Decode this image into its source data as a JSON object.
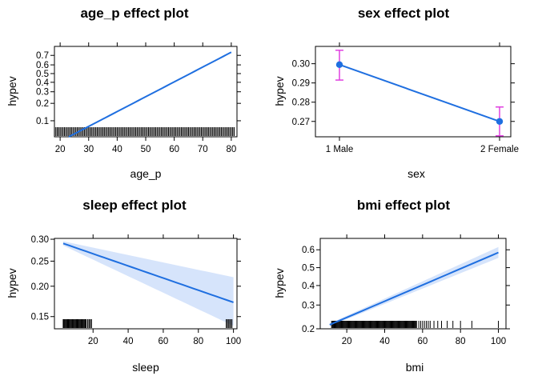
{
  "chart_data": [
    {
      "type": "line",
      "title": "age_p effect plot",
      "xlabel": "age_p",
      "ylabel": "hypev",
      "x_scale": "linear",
      "y_scale": "logit",
      "xlim": [
        18,
        82
      ],
      "ylim": [
        0.05,
        0.78
      ],
      "x_ticks": [
        "20",
        "30",
        "40",
        "50",
        "60",
        "70",
        "80"
      ],
      "y_ticks": [
        "0.1",
        "0.2",
        "0.3",
        "0.4",
        "0.5",
        "0.6",
        "0.7"
      ],
      "series": [
        {
          "kind": "fit",
          "color": "#1f6fe0",
          "x": [
            23,
            80
          ],
          "y": [
            0.05,
            0.73
          ]
        }
      ],
      "rug": {
        "type": "dense",
        "from": 18,
        "to": 81
      },
      "grid": false
    },
    {
      "type": "line",
      "title": "sex effect plot",
      "xlabel": "sex",
      "ylabel": "hypev",
      "categories": [
        "1 Male",
        "2 Female"
      ],
      "x_ticks": [
        "1 Male",
        "2 Female"
      ],
      "y_ticks": [
        "0.27",
        "0.28",
        "0.29",
        "0.30"
      ],
      "ylim": [
        0.262,
        0.309
      ],
      "series": [
        {
          "kind": "points",
          "color": "#1f6fe0",
          "values": [
            0.2995,
            0.27
          ],
          "lower": [
            0.2915,
            0.2625
          ],
          "upper": [
            0.307,
            0.2775
          ],
          "errorbar_color": "#e040e0"
        }
      ],
      "grid": false
    },
    {
      "type": "line",
      "title": "sleep effect plot",
      "xlabel": "sleep",
      "ylabel": "hypev",
      "xlim": [
        -2,
        102
      ],
      "ylim": [
        0.133,
        0.302
      ],
      "y_scale": "logit",
      "x_ticks": [
        "20",
        "40",
        "60",
        "80",
        "100"
      ],
      "y_ticks": [
        "0.15",
        "0.20",
        "0.25",
        "0.30"
      ],
      "series": [
        {
          "kind": "fit",
          "color": "#1f6fe0",
          "band_color": "#d6e4fb",
          "x": [
            3,
            100
          ],
          "y": [
            0.29,
            0.172
          ],
          "band_upper": [
            0.295,
            0.217
          ],
          "band_lower": [
            0.285,
            0.137
          ]
        }
      ],
      "rug": {
        "type": "sparse",
        "dense_from": 3,
        "dense_to": 16,
        "extra": [
          17,
          18,
          19,
          96,
          97,
          98,
          99
        ]
      },
      "grid": false
    },
    {
      "type": "line",
      "title": "bmi effect plot",
      "xlabel": "bmi",
      "ylabel": "hypev",
      "xlim": [
        6,
        104
      ],
      "ylim": [
        0.2,
        0.66
      ],
      "y_scale": "logit",
      "x_ticks": [
        "20",
        "40",
        "60",
        "80",
        "100"
      ],
      "y_ticks": [
        "0.2",
        "0.3",
        "0.4",
        "0.5",
        "0.6"
      ],
      "series": [
        {
          "kind": "fit",
          "color": "#1f6fe0",
          "band_color": "#d6e4fb",
          "x": [
            11,
            100
          ],
          "y": [
            0.215,
            0.585
          ],
          "band_upper": [
            0.22,
            0.615
          ],
          "band_lower": [
            0.21,
            0.555
          ]
        }
      ],
      "rug": {
        "type": "mixed",
        "dense_from": 12,
        "dense_to": 57,
        "extra": [
          58,
          59,
          60,
          61,
          62,
          63,
          64,
          66,
          68,
          70,
          73,
          76,
          80,
          86,
          100
        ]
      },
      "grid": false
    }
  ]
}
